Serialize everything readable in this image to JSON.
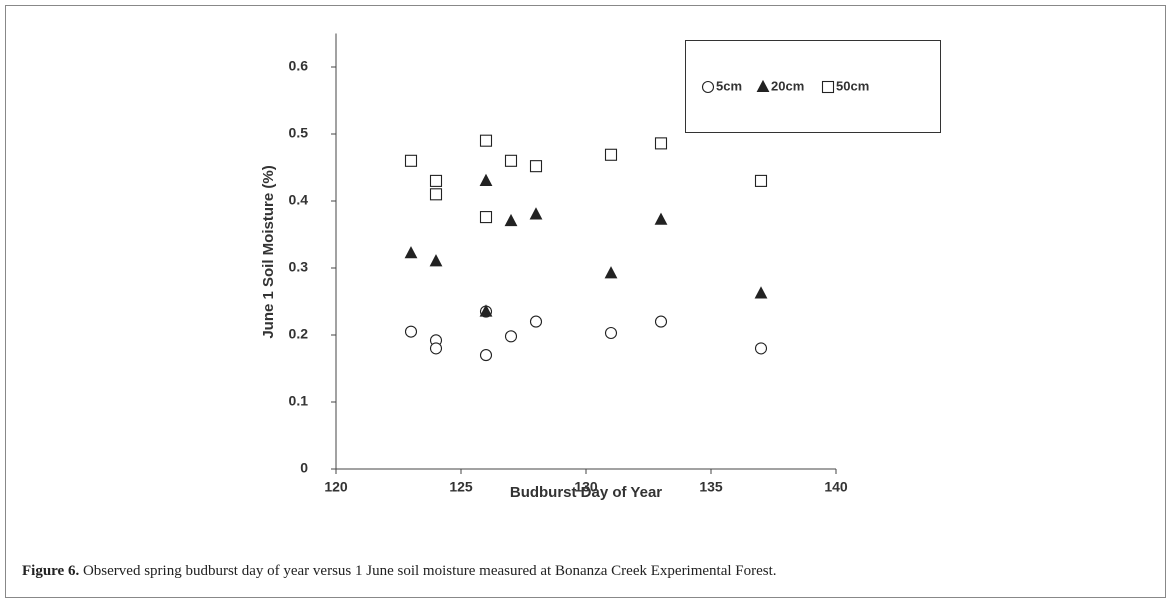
{
  "chart_data": {
    "type": "scatter",
    "xlabel": "Budburst Day of Year",
    "ylabel": "June 1 Soil Moisture (%)",
    "xlim": [
      120,
      140
    ],
    "xticks": [
      120,
      125,
      130,
      135,
      140
    ],
    "ylim": [
      0,
      0.65
    ],
    "yticks": [
      0,
      0.1,
      0.2,
      0.3,
      0.4,
      0.5,
      0.6
    ],
    "legend": "upper right",
    "series": [
      {
        "name": "5cm",
        "marker": "circle",
        "filled": false,
        "color": "#222222",
        "x": [
          123,
          124,
          124,
          126,
          126,
          127,
          128,
          131,
          133,
          137
        ],
        "values": [
          0.205,
          0.192,
          0.18,
          0.235,
          0.17,
          0.198,
          0.22,
          0.203,
          0.22,
          0.18
        ]
      },
      {
        "name": "20cm",
        "marker": "triangle",
        "filled": true,
        "color": "#222222",
        "x": [
          123,
          124,
          126,
          126,
          127,
          128,
          131,
          133,
          137
        ],
        "values": [
          0.322,
          0.31,
          0.43,
          0.235,
          0.37,
          0.38,
          0.292,
          0.372,
          0.262
        ]
      },
      {
        "name": "50cm",
        "marker": "square",
        "filled": false,
        "color": "#222222",
        "x": [
          123,
          124,
          124,
          126,
          126,
          127,
          128,
          131,
          133,
          137
        ],
        "values": [
          0.46,
          0.43,
          0.41,
          0.49,
          0.376,
          0.46,
          0.452,
          0.469,
          0.486,
          0.43
        ]
      }
    ]
  },
  "caption": {
    "label": "Figure 6.",
    "text": " Observed spring budburst day of year versus 1 June soil moisture measured at Bonanza Creek Experimental Forest."
  }
}
